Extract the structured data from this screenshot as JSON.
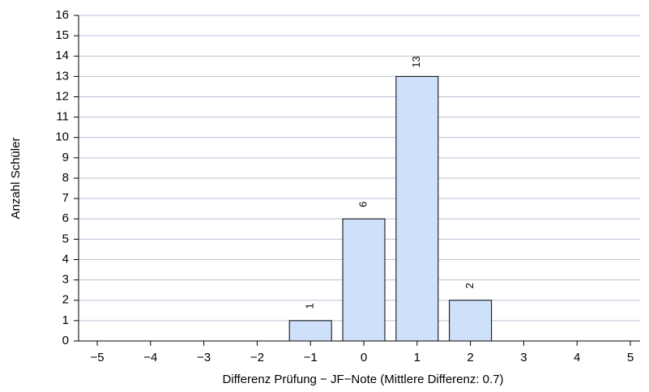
{
  "chart_data": {
    "type": "bar",
    "x_label": "Differenz Prüfung − JF−Note (Mittlere Differenz: 0.7)",
    "y_label": "Anzahl Schüler",
    "categories": [
      "−5",
      "−4",
      "−3",
      "−2",
      "−1",
      "0",
      "1",
      "2",
      "3",
      "4",
      "5"
    ],
    "values": [
      0,
      0,
      0,
      0,
      1,
      6,
      13,
      2,
      0,
      0,
      0
    ],
    "color": "#cfe0fb",
    "ylim": [
      0,
      16
    ],
    "yticks": [
      0,
      1,
      2,
      3,
      4,
      5,
      6,
      7,
      8,
      9,
      10,
      11,
      12,
      13,
      14,
      15,
      16
    ],
    "grid": true
  }
}
